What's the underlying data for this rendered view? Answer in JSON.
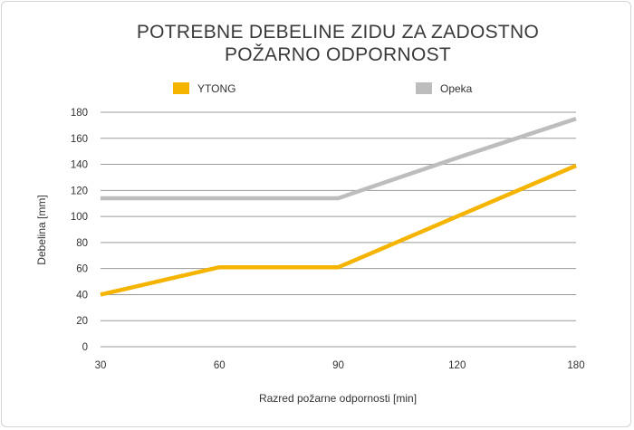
{
  "chart_data": {
    "type": "line",
    "title": [
      "POTREBNE DEBELINE ZIDU ZA ZADOSTNO",
      "POŽARNO ODPORNOST"
    ],
    "xlabel": "Razred požarne odpornosti [min]",
    "ylabel": "Debelina [mm]",
    "categories": [
      "30",
      "60",
      "90",
      "120",
      "180"
    ],
    "ylim": [
      0,
      180
    ],
    "yticks": [
      0,
      20,
      40,
      60,
      80,
      100,
      120,
      140,
      160,
      180
    ],
    "grid": true,
    "legend_position": "top",
    "series": [
      {
        "name": "YTONG",
        "color": "#f5b400",
        "values": [
          40,
          61,
          61,
          100,
          139
        ]
      },
      {
        "name": "Opeka",
        "color": "#bdbdbd",
        "values": [
          114,
          114,
          114,
          145,
          175
        ]
      }
    ]
  }
}
